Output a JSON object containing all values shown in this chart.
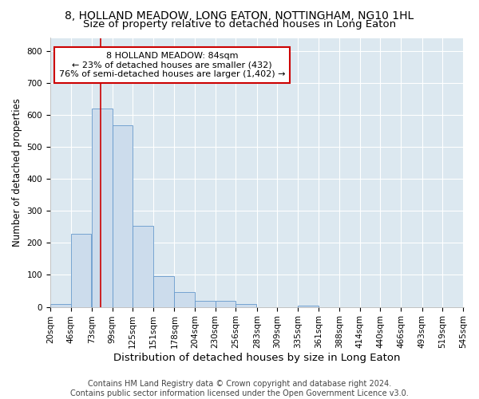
{
  "title": "8, HOLLAND MEADOW, LONG EATON, NOTTINGHAM, NG10 1HL",
  "subtitle": "Size of property relative to detached houses in Long Eaton",
  "xlabel": "Distribution of detached houses by size in Long Eaton",
  "ylabel": "Number of detached properties",
  "bar_color": "#ccdcec",
  "bar_edge_color": "#6699cc",
  "bg_color": "#dce8f0",
  "grid_color": "#ffffff",
  "property_line_value": 84,
  "property_line_color": "#cc0000",
  "annotation_text": "8 HOLLAND MEADOW: 84sqm\n← 23% of detached houses are smaller (432)\n76% of semi-detached houses are larger (1,402) →",
  "annotation_box_color": "#cc0000",
  "bins_left": [
    20,
    46,
    73,
    99,
    125,
    151,
    178,
    204,
    230,
    256,
    283,
    309,
    335,
    361,
    388,
    414,
    440,
    466,
    493,
    519
  ],
  "bin_width": 26,
  "bar_heights": [
    8,
    228,
    620,
    568,
    252,
    95,
    47,
    20,
    20,
    8,
    0,
    0,
    5,
    0,
    0,
    0,
    0,
    0,
    0,
    0
  ],
  "xlim": [
    20,
    546
  ],
  "ylim": [
    0,
    840
  ],
  "yticks": [
    0,
    100,
    200,
    300,
    400,
    500,
    600,
    700,
    800
  ],
  "tick_labels": [
    "20sqm",
    "46sqm",
    "73sqm",
    "99sqm",
    "125sqm",
    "151sqm",
    "178sqm",
    "204sqm",
    "230sqm",
    "256sqm",
    "283sqm",
    "309sqm",
    "335sqm",
    "361sqm",
    "388sqm",
    "414sqm",
    "440sqm",
    "466sqm",
    "493sqm",
    "519sqm",
    "545sqm"
  ],
  "footer_text": "Contains HM Land Registry data © Crown copyright and database right 2024.\nContains public sector information licensed under the Open Government Licence v3.0.",
  "title_fontsize": 10,
  "subtitle_fontsize": 9.5,
  "xlabel_fontsize": 9.5,
  "ylabel_fontsize": 8.5,
  "tick_fontsize": 7.5,
  "footer_fontsize": 7
}
